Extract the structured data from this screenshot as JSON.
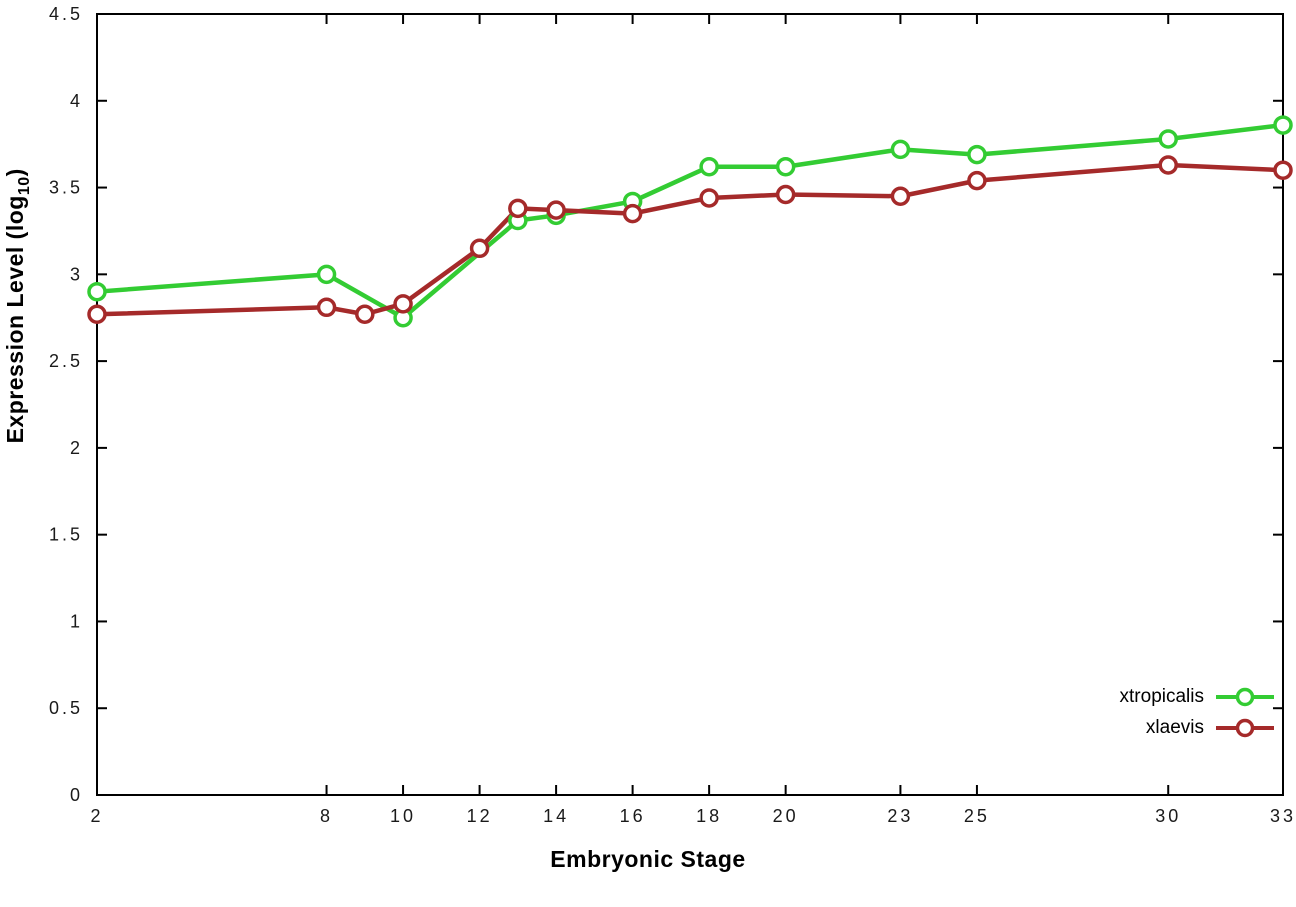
{
  "chart_data": {
    "type": "line",
    "title": "",
    "xlabel": "Embryonic Stage",
    "ylabel_main": "Expression Level (log",
    "ylabel_sub": "10",
    "ylabel_close": ")",
    "xlim": [
      2,
      33
    ],
    "ylim": [
      0,
      4.5
    ],
    "x_ticks": [
      2,
      8,
      10,
      12,
      14,
      16,
      18,
      20,
      23,
      25,
      30,
      33
    ],
    "y_ticks": [
      0,
      0.5,
      1,
      1.5,
      2,
      2.5,
      3,
      3.5,
      4,
      4.5
    ],
    "grid": false,
    "legend_position": "bottom-right",
    "background": "#ffffff",
    "border_color": "#000000",
    "series": [
      {
        "name": "xtropicalis",
        "color": "#33cc33",
        "marker": "open-circle",
        "x": [
          2,
          8,
          10,
          13,
          14,
          16,
          18,
          20,
          23,
          25,
          30,
          33
        ],
        "y": [
          2.9,
          3.0,
          2.75,
          3.31,
          3.34,
          3.42,
          3.62,
          3.62,
          3.72,
          3.69,
          3.78,
          3.86
        ]
      },
      {
        "name": "xlaevis",
        "color": "#a52a2a",
        "marker": "open-circle",
        "x": [
          2,
          8,
          9,
          10,
          12,
          13,
          14,
          16,
          18,
          20,
          23,
          25,
          30,
          33
        ],
        "y": [
          2.77,
          2.81,
          2.77,
          2.83,
          3.15,
          3.38,
          3.37,
          3.35,
          3.44,
          3.46,
          3.45,
          3.54,
          3.63,
          3.6
        ]
      }
    ]
  }
}
